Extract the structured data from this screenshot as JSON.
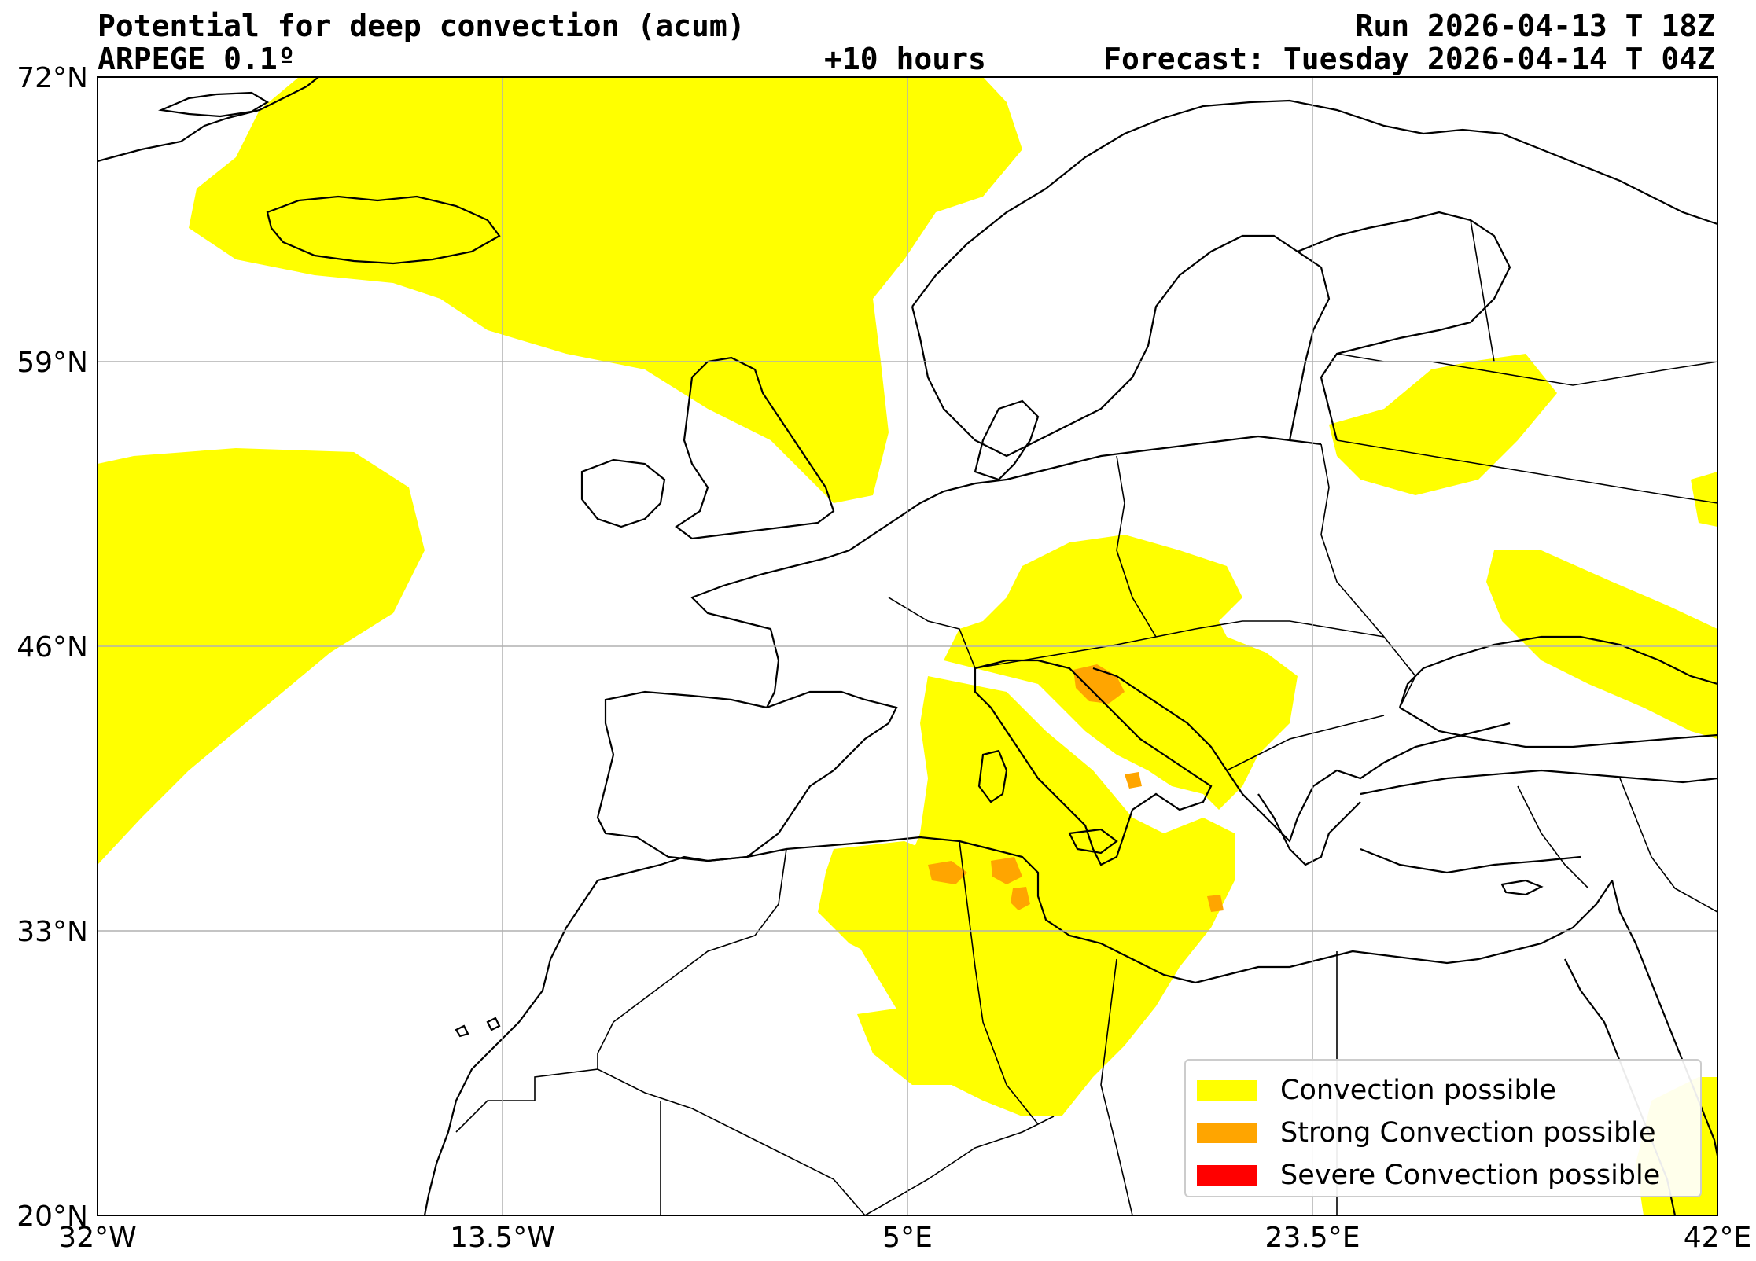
{
  "header": {
    "title": "Potential for deep convection (acum)",
    "model": "ARPEGE 0.1º",
    "lead_time": "+10 hours",
    "run": "Run 2026-04-13 T 18Z",
    "forecast": "Forecast: Tuesday 2026-04-14 T 04Z"
  },
  "map": {
    "lon_range": [
      -32,
      42
    ],
    "lat_range": [
      20,
      72
    ],
    "grid": true,
    "x_ticks": [
      {
        "value": -32,
        "label": "32°W"
      },
      {
        "value": -13.5,
        "label": "13.5°W"
      },
      {
        "value": 5,
        "label": "5°E"
      },
      {
        "value": 23.5,
        "label": "23.5°E"
      },
      {
        "value": 42,
        "label": "42°E"
      }
    ],
    "y_ticks": [
      {
        "value": 72,
        "label": "72°N"
      },
      {
        "value": 59,
        "label": "59°N"
      },
      {
        "value": 46,
        "label": "46°N"
      },
      {
        "value": 33,
        "label": "33°N"
      },
      {
        "value": 20,
        "label": "20°N"
      }
    ]
  },
  "legend": {
    "position": "bottom-right",
    "items": [
      {
        "label": "Convection possible",
        "color": "#ffff00"
      },
      {
        "label": "Strong Convection possible",
        "color": "#ffa500"
      },
      {
        "label": "Severe Convection possible",
        "color": "#ff0000"
      }
    ]
  },
  "colors": {
    "convection": "#ffff00",
    "strong": "#ffa500",
    "severe": "#ff0000",
    "coastline": "#000000",
    "grid": "#b0b0b0"
  }
}
